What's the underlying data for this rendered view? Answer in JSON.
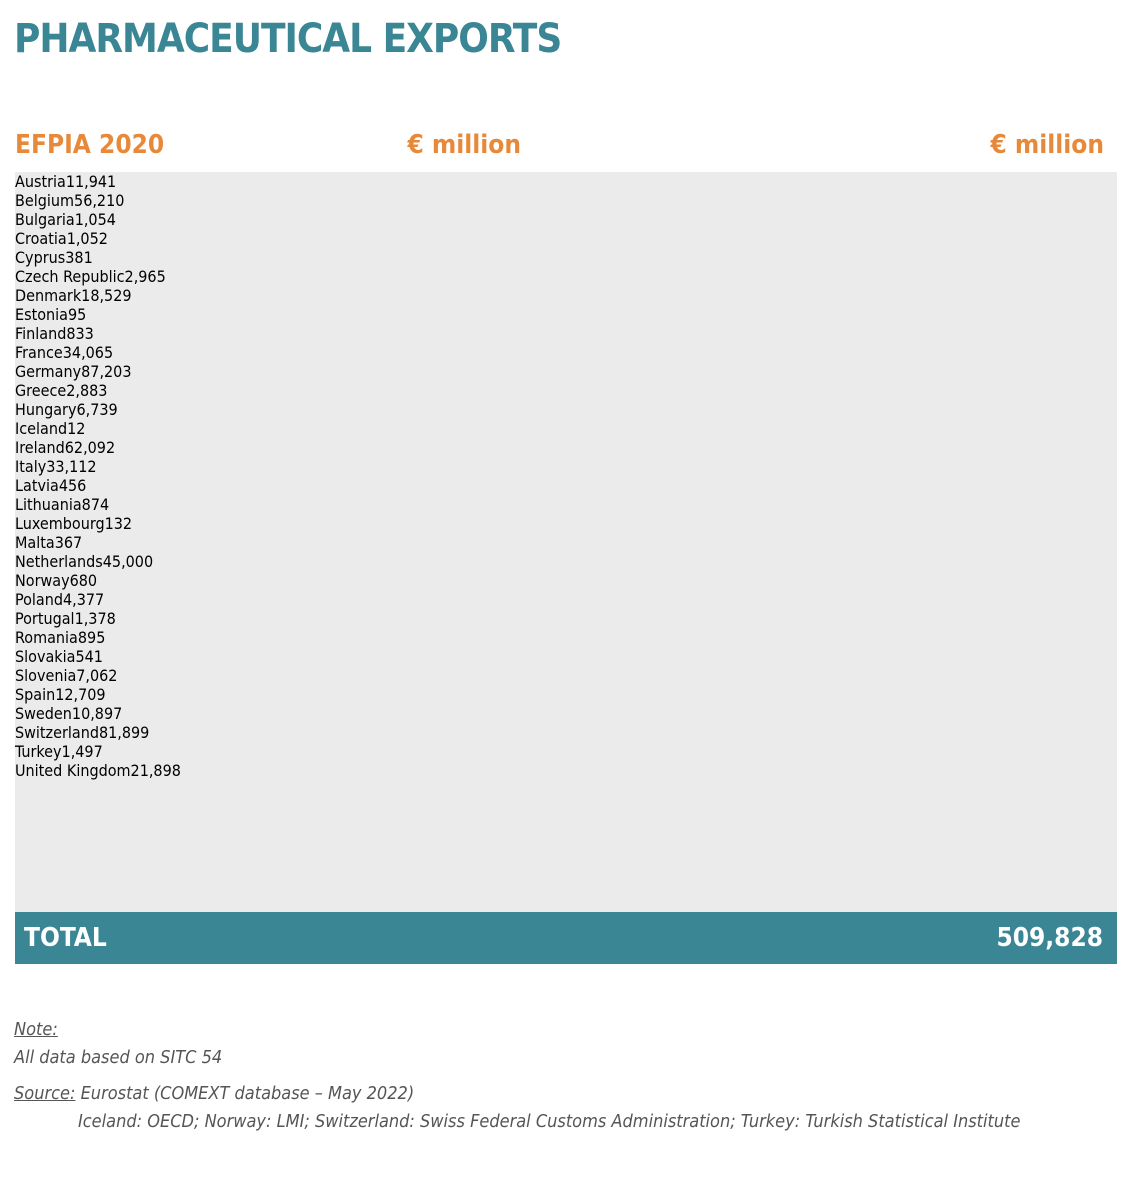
{
  "title": "PHARMACEUTICAL EXPORTS",
  "header": {
    "label": "EFPIA 2020",
    "unit_left": "€ million",
    "unit_right": "€ million"
  },
  "table": {
    "left": [
      [
        "Austria",
        "11,941"
      ],
      [
        "Belgium",
        "56,210"
      ],
      [
        "Bulgaria",
        "1,054"
      ],
      [
        "Croatia",
        "1,052"
      ],
      [
        "Cyprus",
        "381"
      ],
      [
        "Czech Republic",
        "2,965"
      ],
      [
        "Denmark",
        "18,529"
      ],
      [
        "Estonia",
        "95"
      ],
      [
        "Finland",
        "833"
      ],
      [
        "France",
        "34,065"
      ],
      [
        "Germany",
        "87,203"
      ],
      [
        "Greece",
        "2,883"
      ],
      [
        "Hungary",
        "6,739"
      ],
      [
        "Iceland",
        "12"
      ],
      [
        "Ireland",
        "62,092"
      ],
      [
        "Italy",
        "33,112"
      ]
    ],
    "right": [
      [
        "Latvia",
        "456"
      ],
      [
        "Lithuania",
        "874"
      ],
      [
        "Luxembourg",
        "132"
      ],
      [
        "Malta",
        "367"
      ],
      [
        "Netherlands",
        "45,000"
      ],
      [
        "Norway",
        "680"
      ],
      [
        "Poland",
        "4,377"
      ],
      [
        "Portugal",
        "1,378"
      ],
      [
        "Romania",
        "895"
      ],
      [
        "Slovakia",
        "541"
      ],
      [
        "Slovenia",
        "7,062"
      ],
      [
        "Spain",
        "12,709"
      ],
      [
        "Sweden",
        "10,897"
      ],
      [
        "Switzerland",
        "81,899"
      ],
      [
        "Turkey",
        "1,497"
      ],
      [
        "United Kingdom",
        "21,898"
      ]
    ]
  },
  "total": {
    "label": "TOTAL",
    "value": "509,828"
  },
  "notes": {
    "note_label": "Note:",
    "note_text": "All data based on SITC 54",
    "source_label": "Source:",
    "source_text": " Eurostat (COMEXT database – May 2022)",
    "source_extra": "Iceland: OECD; Norway: LMI; Switzerland: Swiss Federal Customs Administration; Turkey: Turkish Statistical Institute"
  }
}
